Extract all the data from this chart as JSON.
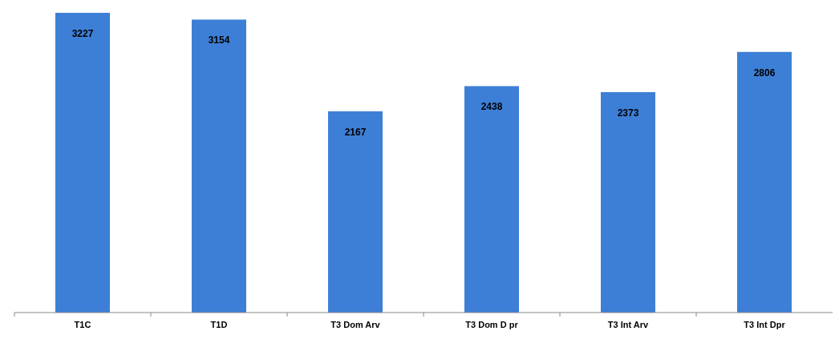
{
  "chart_data": {
    "type": "bar",
    "categories": [
      "T1C",
      "T1D",
      "T3 Dom Arv",
      "T3 Dom D pr",
      "T3 Int Arv",
      "T3 Int Dpr"
    ],
    "values": [
      3227,
      3154,
      2167,
      2438,
      2373,
      2806
    ],
    "color": "#3d7fd6",
    "data_labels": true
  }
}
